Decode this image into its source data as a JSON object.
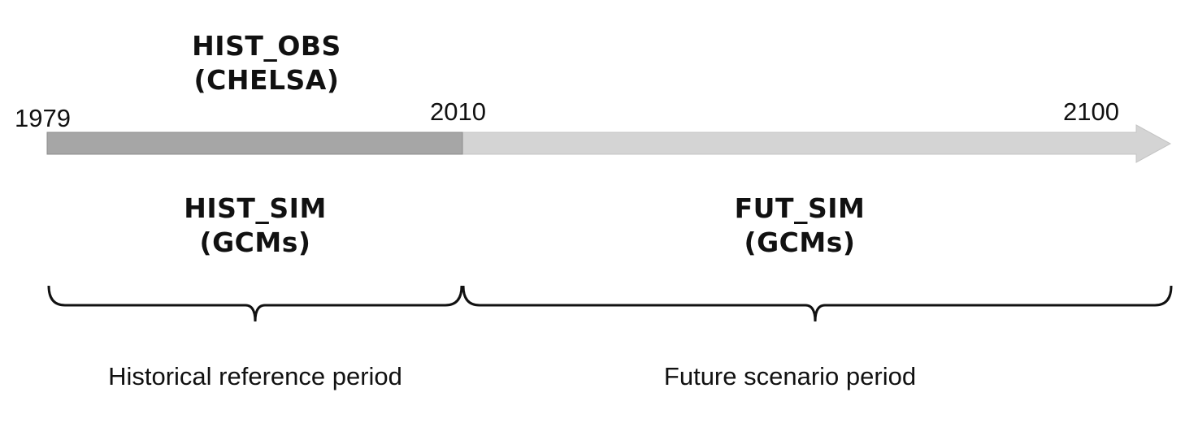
{
  "labels": {
    "hist_obs_line1": "HIST_OBS",
    "hist_obs_line2": "(CHELSA)",
    "hist_sim_line1": "HIST_SIM",
    "hist_sim_line2": "(GCMs)",
    "fut_sim_line1": "FUT_SIM",
    "fut_sim_line2": "(GCMs)"
  },
  "years": {
    "start": "1979",
    "split": "2010",
    "end": "2100"
  },
  "periods": {
    "historical": "Historical reference period",
    "future": "Future scenario period"
  },
  "colors": {
    "historical_bar": "#a6a6a6",
    "future_arrow": "#d4d4d4",
    "bracket": "#111111"
  }
}
